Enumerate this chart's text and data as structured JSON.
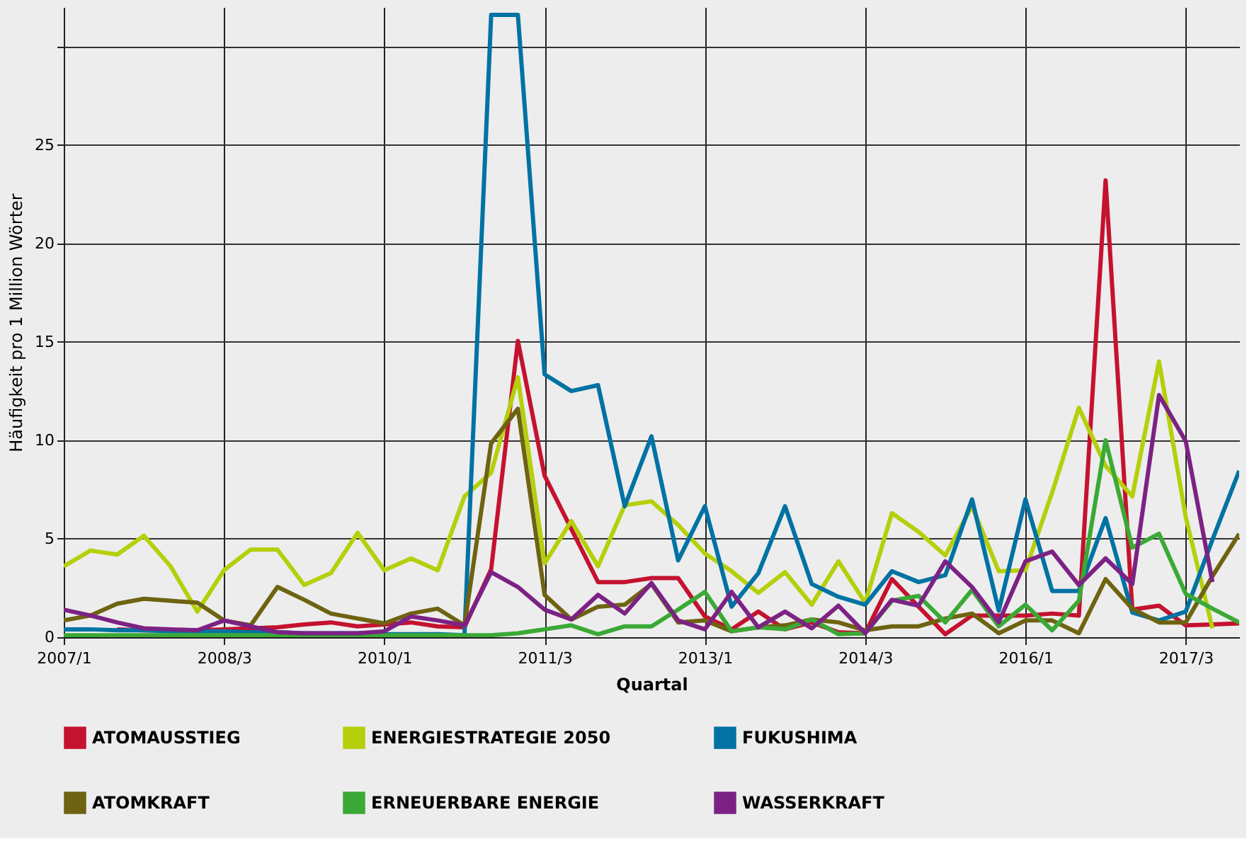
{
  "chart_data": {
    "type": "line",
    "xlabel": "Quartal",
    "ylabel": "Häufigkeit pro 1 Million Wörter",
    "categories": [
      "2007/1",
      null,
      null,
      null,
      null,
      null,
      "2008/3",
      null,
      null,
      null,
      null,
      null,
      "2010/1",
      null,
      null,
      null,
      null,
      null,
      "2011/3",
      null,
      null,
      null,
      null,
      null,
      "2013/1",
      null,
      null,
      null,
      null,
      null,
      "2014/3",
      null,
      null,
      null,
      null,
      null,
      "2016/1",
      null,
      null,
      null,
      null,
      null,
      "2017/3",
      null,
      null
    ],
    "ylim": [
      0,
      32
    ],
    "yticks": [
      0,
      5,
      10,
      15,
      20,
      25,
      {
        "value": 30,
        "label": null
      }
    ],
    "grid": true,
    "legend": "bottom",
    "line_style": "solid",
    "marker": "none",
    "series": [
      {
        "name": "ATOMAUSSTIEG",
        "color": "#c4122f",
        "values": [
          null,
          null,
          0.4,
          0.35,
          0.35,
          0.35,
          0.4,
          0.45,
          0.5,
          0.65,
          0.75,
          0.55,
          0.65,
          0.75,
          0.55,
          0.5,
          3.45,
          15.05,
          8.2,
          5.5,
          2.8,
          2.8,
          3.0,
          3.0,
          1.05,
          0.4,
          1.3,
          0.4,
          0.75,
          0.25,
          0.2,
          2.95,
          1.55,
          0.15,
          1.1,
          1.1,
          1.1,
          1.2,
          1.1,
          23.2,
          1.4,
          1.6,
          0.6,
          0.65,
          0.7
        ]
      },
      {
        "name": "ENERGIESTRATEGIE 2050",
        "color": "#b5cf0b",
        "values": [
          3.6,
          4.4,
          4.2,
          5.15,
          3.6,
          1.3,
          3.4,
          4.45,
          4.45,
          2.65,
          3.25,
          5.3,
          3.4,
          4.0,
          3.4,
          7.15,
          8.35,
          13.2,
          3.75,
          5.9,
          3.6,
          6.7,
          6.9,
          5.7,
          4.25,
          3.35,
          2.25,
          3.3,
          1.65,
          3.85,
          1.75,
          6.3,
          5.35,
          4.15,
          6.65,
          3.35,
          3.4,
          7.35,
          11.65,
          8.7,
          7.15,
          14.0,
          6.1,
          0.45,
          null
        ]
      },
      {
        "name": "FUKUSHIMA",
        "color": "#0072a3",
        "values": [
          0.4,
          0.4,
          0.35,
          0.35,
          0.3,
          0.3,
          0.3,
          0.25,
          0.25,
          0.2,
          0.2,
          0.2,
          0.15,
          0.15,
          0.15,
          0.1,
          31.6,
          31.6,
          13.35,
          12.5,
          12.8,
          6.65,
          10.2,
          3.9,
          6.65,
          1.55,
          3.25,
          6.65,
          2.7,
          2.05,
          1.65,
          3.35,
          2.8,
          3.15,
          7.0,
          1.35,
          7.0,
          2.35,
          2.35,
          6.05,
          1.25,
          0.85,
          1.3,
          4.95,
          8.45
        ]
      },
      {
        "name": "ATOMKRAFT",
        "color": "#6e6310",
        "values": [
          0.85,
          1.1,
          1.7,
          1.95,
          1.85,
          1.75,
          0.85,
          0.6,
          2.55,
          1.9,
          1.2,
          0.95,
          0.7,
          1.2,
          1.45,
          0.6,
          9.85,
          11.6,
          2.15,
          0.9,
          1.55,
          1.65,
          2.7,
          0.75,
          0.85,
          0.3,
          0.5,
          0.6,
          0.9,
          0.75,
          0.35,
          0.55,
          0.55,
          0.95,
          1.2,
          0.2,
          0.85,
          0.85,
          0.2,
          2.95,
          1.45,
          0.75,
          0.75,
          3.1,
          5.25
        ]
      },
      {
        "name": "ERNEUERBARE ENERGIE",
        "color": "#3aa935",
        "values": [
          0.1,
          0.1,
          0.1,
          0.1,
          0.1,
          0.1,
          0.1,
          0.1,
          0.1,
          0.1,
          0.1,
          0.1,
          0.1,
          0.1,
          0.1,
          0.1,
          0.1,
          0.2,
          0.4,
          0.6,
          0.15,
          0.55,
          0.55,
          1.4,
          2.3,
          0.3,
          0.5,
          0.4,
          0.9,
          0.15,
          0.2,
          1.85,
          2.1,
          0.75,
          2.4,
          0.55,
          1.65,
          0.35,
          1.85,
          10.0,
          4.55,
          5.25,
          2.2,
          1.45,
          0.75
        ]
      },
      {
        "name": "WASSERKRAFT",
        "color": "#7c2284",
        "values": [
          1.4,
          1.1,
          0.75,
          0.45,
          0.4,
          0.35,
          0.85,
          0.55,
          0.25,
          0.2,
          0.2,
          0.2,
          0.3,
          1.05,
          0.85,
          0.6,
          3.3,
          2.55,
          1.4,
          0.9,
          2.15,
          1.2,
          2.75,
          0.85,
          0.4,
          2.3,
          0.5,
          1.3,
          0.45,
          1.6,
          0.2,
          1.9,
          1.6,
          3.85,
          2.55,
          0.75,
          3.85,
          4.35,
          2.65,
          4.0,
          2.7,
          12.3,
          9.95,
          2.8,
          null
        ]
      }
    ]
  }
}
